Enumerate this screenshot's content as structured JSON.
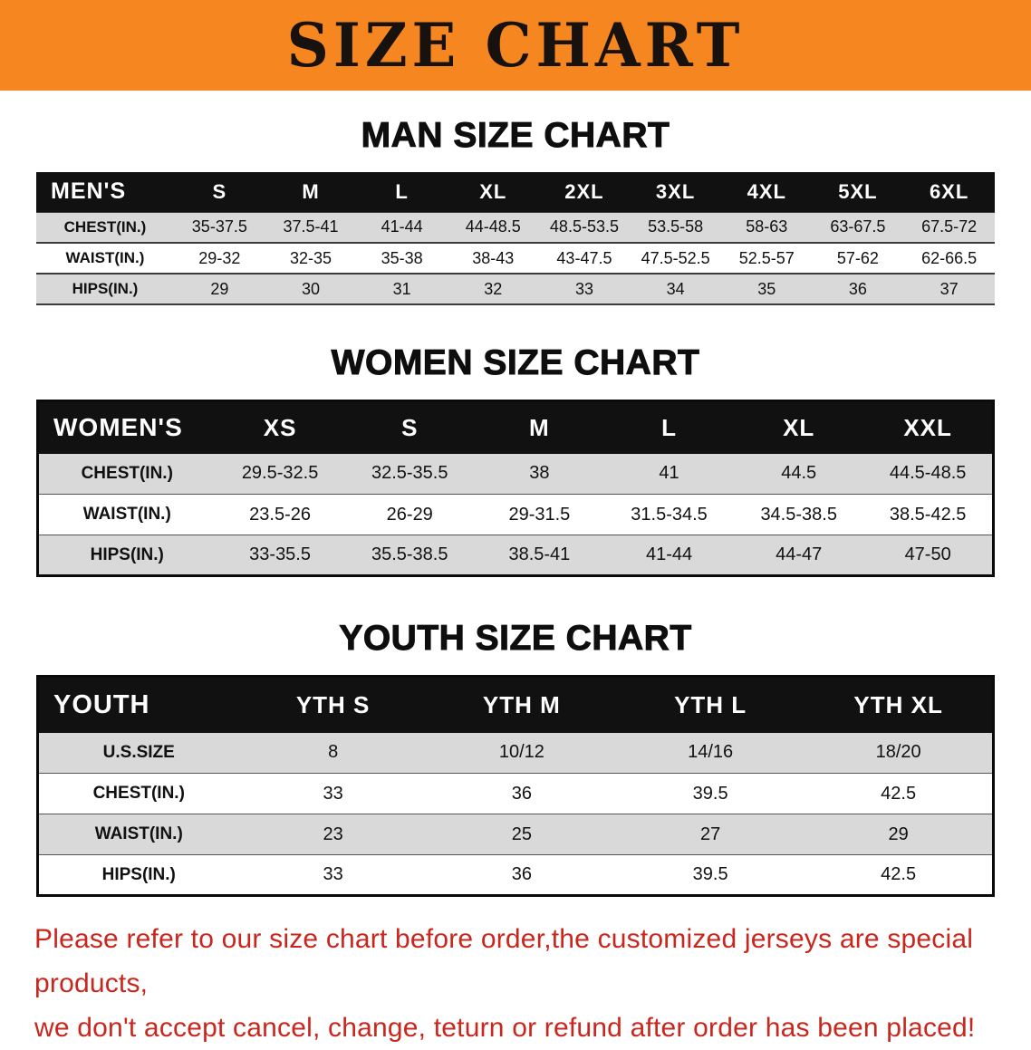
{
  "banner": {
    "title": "SIZE CHART"
  },
  "colors": {
    "banner_bg": "#F6861F",
    "table_header_bg": "#111111",
    "row_stripe": "#D9D9D9",
    "notice_text": "#C9271E"
  },
  "sections": [
    {
      "id": "men",
      "heading": "MAN SIZE CHART",
      "table": {
        "header": [
          "MEN'S",
          "S",
          "M",
          "L",
          "XL",
          "2XL",
          "3XL",
          "4XL",
          "5XL",
          "6XL"
        ],
        "rows": [
          [
            "CHEST(IN.)",
            "35-37.5",
            "37.5-41",
            "41-44",
            "44-48.5",
            "48.5-53.5",
            "53.5-58",
            "58-63",
            "63-67.5",
            "67.5-72"
          ],
          [
            "WAIST(IN.)",
            "29-32",
            "32-35",
            "35-38",
            "38-43",
            "43-47.5",
            "47.5-52.5",
            "52.5-57",
            "57-62",
            "62-66.5"
          ],
          [
            "HIPS(IN.)",
            "29",
            "30",
            "31",
            "32",
            "33",
            "34",
            "35",
            "36",
            "37"
          ]
        ]
      }
    },
    {
      "id": "women",
      "heading": "WOMEN SIZE CHART",
      "table": {
        "header": [
          "WOMEN'S",
          "XS",
          "S",
          "M",
          "L",
          "XL",
          "XXL"
        ],
        "rows": [
          [
            "CHEST(IN.)",
            "29.5-32.5",
            "32.5-35.5",
            "38",
            "41",
            "44.5",
            "44.5-48.5"
          ],
          [
            "WAIST(IN.)",
            "23.5-26",
            "26-29",
            "29-31.5",
            "31.5-34.5",
            "34.5-38.5",
            "38.5-42.5"
          ],
          [
            "HIPS(IN.)",
            "33-35.5",
            "35.5-38.5",
            "38.5-41",
            "41-44",
            "44-47",
            "47-50"
          ]
        ]
      }
    },
    {
      "id": "youth",
      "heading": "YOUTH SIZE CHART",
      "table": {
        "header": [
          "YOUTH",
          "YTH S",
          "YTH M",
          "YTH L",
          "YTH XL"
        ],
        "rows": [
          [
            "U.S.SIZE",
            "8",
            "10/12",
            "14/16",
            "18/20"
          ],
          [
            "CHEST(IN.)",
            "33",
            "36",
            "39.5",
            "42.5"
          ],
          [
            "WAIST(IN.)",
            "23",
            "25",
            "27",
            "29"
          ],
          [
            "HIPS(IN.)",
            "33",
            "36",
            "39.5",
            "42.5"
          ]
        ]
      }
    }
  ],
  "notice": {
    "line1": "Please refer to our size chart before order,the customized jerseys are special products,",
    "line2": "we don't accept cancel, change, teturn or refund after order has been placed!"
  }
}
